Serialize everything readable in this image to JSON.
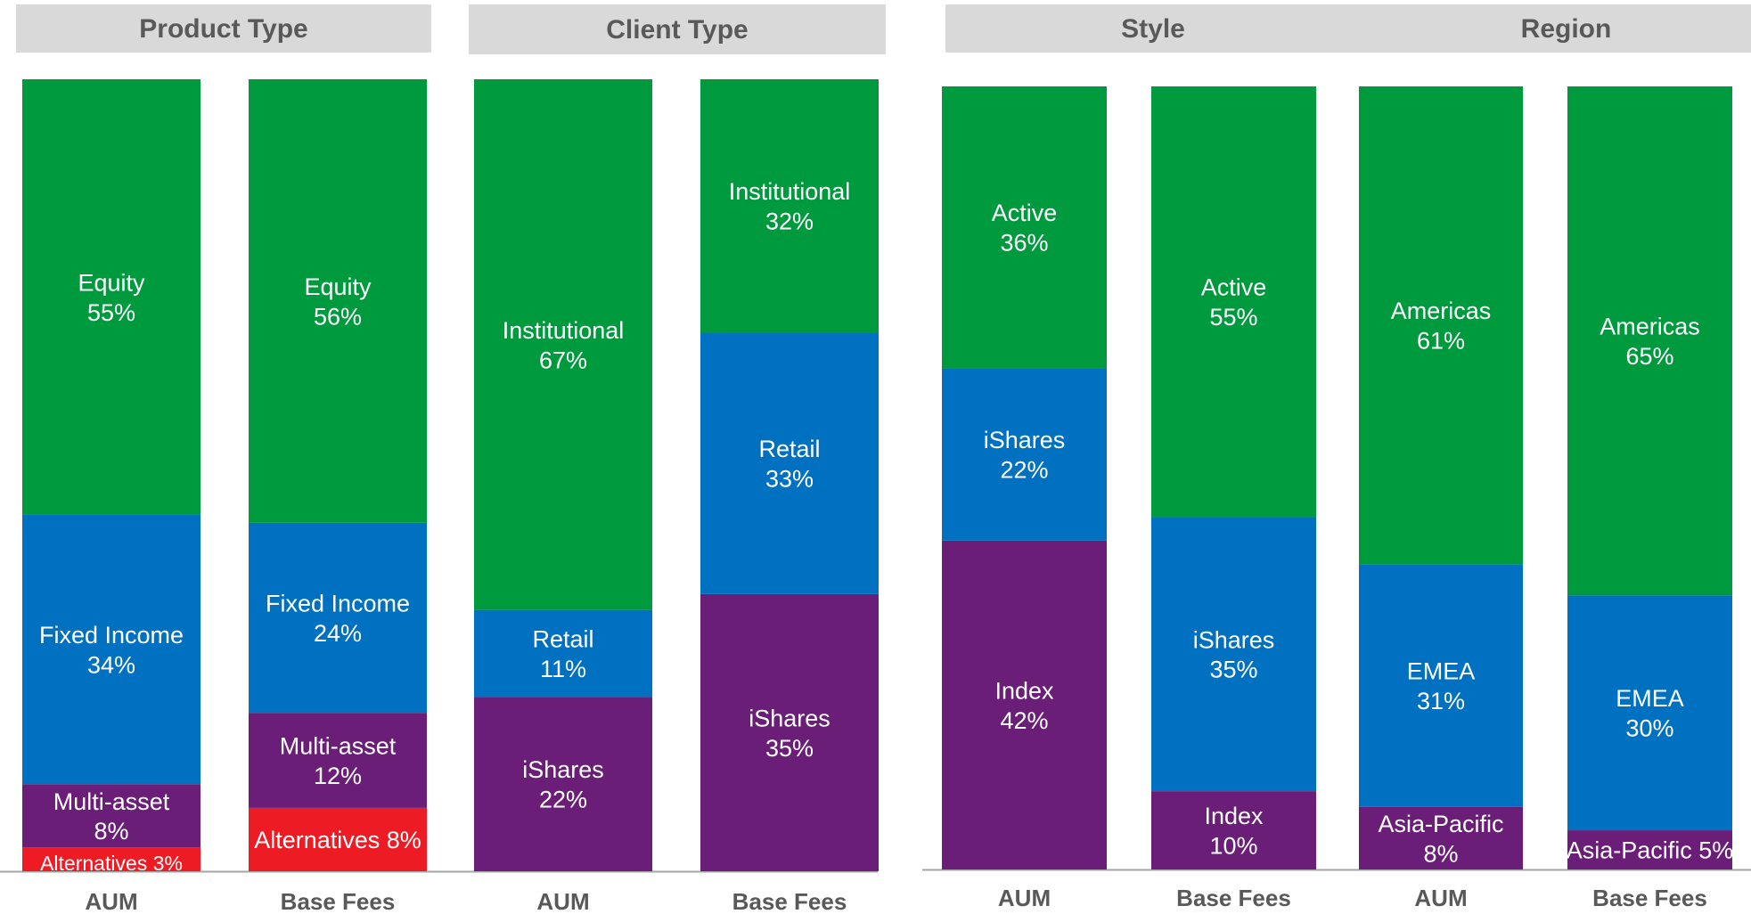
{
  "chart_data": [
    {
      "type": "bar",
      "stacked": true,
      "title": "Product Type",
      "categories": [
        "AUM",
        "Base Fees"
      ],
      "ylim": [
        0,
        100
      ],
      "series": [
        {
          "name": "Alternatives",
          "values": [
            3,
            8
          ],
          "color": "#ED1C24"
        },
        {
          "name": "Multi-asset",
          "values": [
            8,
            12
          ],
          "color": "#6A1E78"
        },
        {
          "name": "Fixed Income",
          "values": [
            34,
            24
          ],
          "color": "#0070C0"
        },
        {
          "name": "Equity",
          "values": [
            55,
            56
          ],
          "color": "#009A3E"
        }
      ],
      "data_labels": [
        [
          "Alternatives 3%",
          "Alternatives 8%"
        ],
        [
          "Multi-asset\n8%",
          "Multi-asset\n12%"
        ],
        [
          "Fixed Income\n34%",
          "Fixed Income\n24%"
        ],
        [
          "Equity\n55%",
          "Equity\n56%"
        ]
      ]
    },
    {
      "type": "bar",
      "stacked": true,
      "title": "Client Type",
      "categories": [
        "AUM",
        "Base Fees"
      ],
      "ylim": [
        0,
        100
      ],
      "series": [
        {
          "name": "iShares",
          "values": [
            22,
            35
          ],
          "color": "#6A1E78"
        },
        {
          "name": "Retail",
          "values": [
            11,
            33
          ],
          "color": "#0070C0"
        },
        {
          "name": "Institutional",
          "values": [
            67,
            32
          ],
          "color": "#009A3E"
        }
      ],
      "data_labels": [
        [
          "iShares\n22%",
          "iShares\n35%"
        ],
        [
          "Retail\n11%",
          "Retail\n33%"
        ],
        [
          "Institutional\n67%",
          "Institutional\n32%"
        ]
      ]
    },
    {
      "type": "bar",
      "stacked": true,
      "title": "Style",
      "categories": [
        "AUM",
        "Base Fees"
      ],
      "ylim": [
        0,
        100
      ],
      "series": [
        {
          "name": "Index",
          "values": [
            42,
            10
          ],
          "color": "#6A1E78"
        },
        {
          "name": "iShares",
          "values": [
            22,
            35
          ],
          "color": "#0070C0"
        },
        {
          "name": "Active",
          "values": [
            36,
            55
          ],
          "color": "#009A3E"
        }
      ],
      "data_labels": [
        [
          "Index\n42%",
          "Index\n10%"
        ],
        [
          "iShares\n22%",
          "iShares\n35%"
        ],
        [
          "Active\n36%",
          "Active\n55%"
        ]
      ]
    },
    {
      "type": "bar",
      "stacked": true,
      "title": "Region",
      "categories": [
        "AUM",
        "Base Fees"
      ],
      "ylim": [
        0,
        100
      ],
      "series": [
        {
          "name": "Asia-Pacific",
          "values": [
            8,
            5
          ],
          "color": "#6A1E78"
        },
        {
          "name": "EMEA",
          "values": [
            31,
            30
          ],
          "color": "#0070C0"
        },
        {
          "name": "Americas",
          "values": [
            61,
            65
          ],
          "color": "#009A3E"
        }
      ],
      "data_labels": [
        [
          "Asia-Pacific\n8%",
          "Asia-Pacific 5%"
        ],
        [
          "EMEA\n31%",
          "EMEA\n30%"
        ],
        [
          "Americas\n61%",
          "Americas\n65%"
        ]
      ]
    }
  ],
  "colors": {
    "header_background": "#D9D9D9",
    "title_text": "#595959",
    "baseline": "#A6A6A6",
    "segment_text": "#FFFFFF"
  }
}
